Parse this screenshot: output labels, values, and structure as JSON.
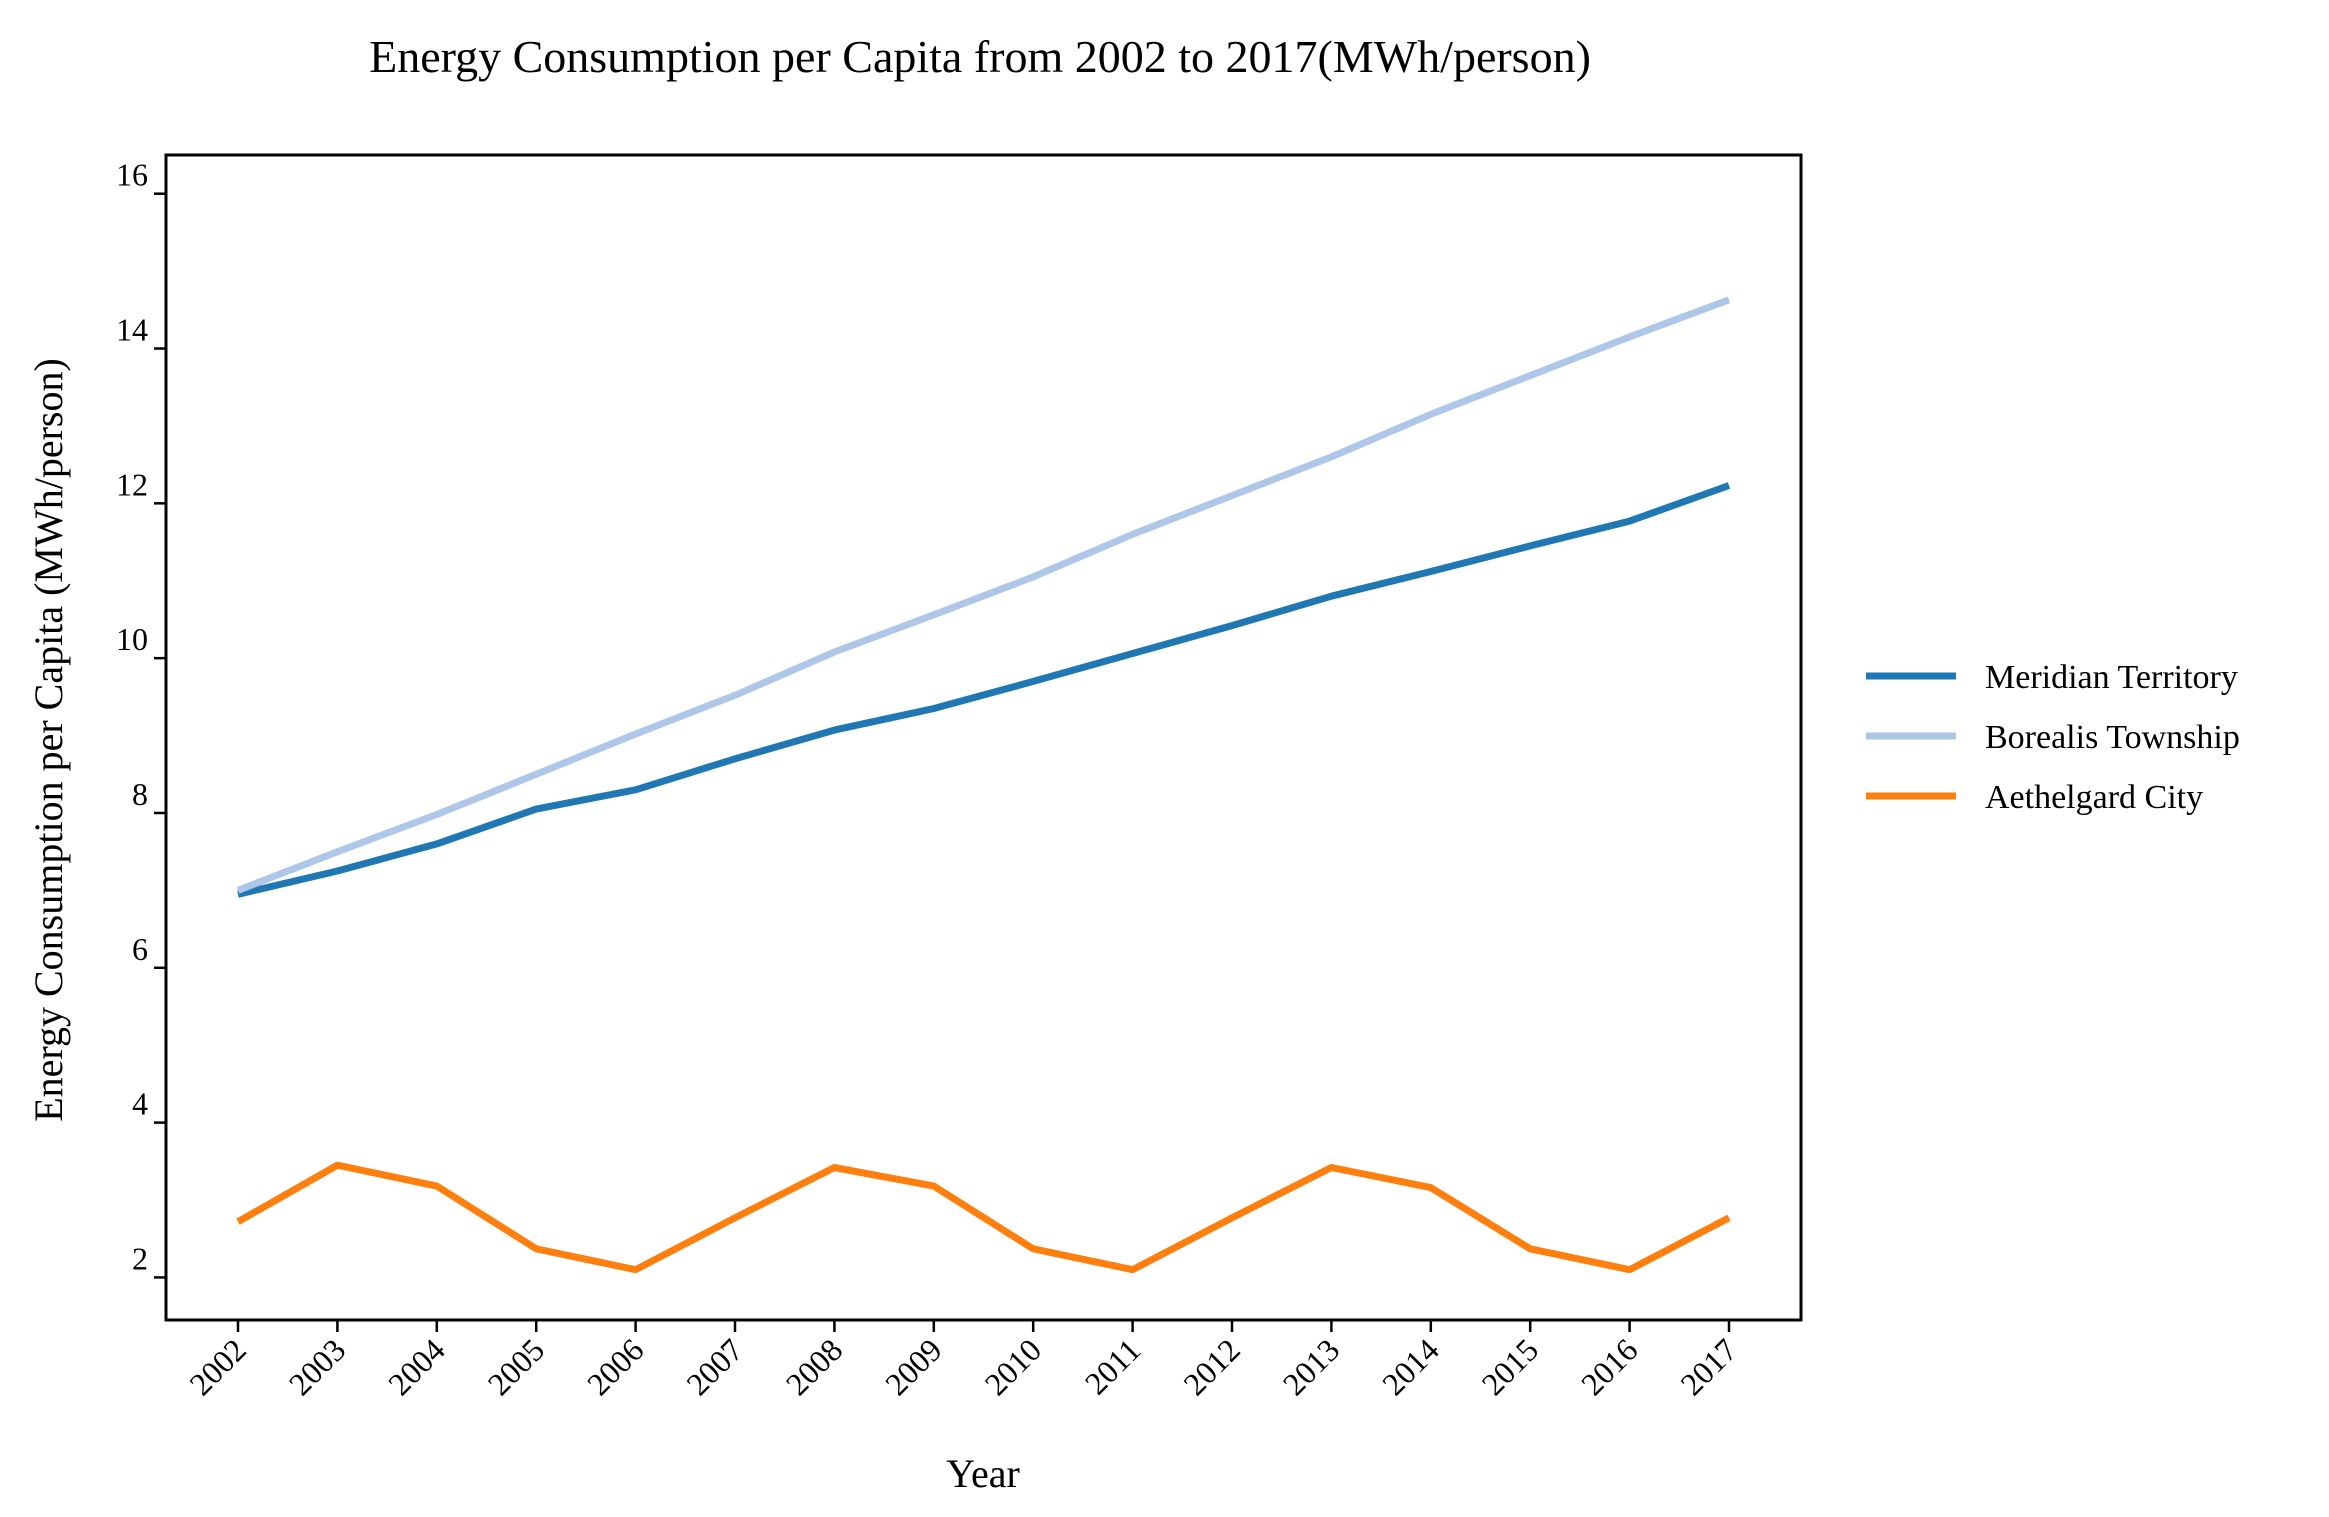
{
  "chart_data": {
    "type": "line",
    "title": "Energy Consumption per Capita from 2002 to 2017(MWh/person)",
    "xlabel": "Year",
    "ylabel": "Energy Consumption per Capita (MWh/person)",
    "x": [
      "2002",
      "2003",
      "2004",
      "2005",
      "2006",
      "2007",
      "2008",
      "2009",
      "2010",
      "2011",
      "2012",
      "2013",
      "2014",
      "2015",
      "2016",
      "2017"
    ],
    "ylim": [
      1.45,
      16.5
    ],
    "yticks": [
      2,
      4,
      6,
      8,
      10,
      12,
      14,
      16
    ],
    "grid": false,
    "legend_position": "right",
    "series": [
      {
        "name": "Meridian Territory",
        "color": "#1f77b4",
        "values": [
          6.95,
          7.25,
          7.6,
          8.05,
          8.3,
          8.7,
          9.07,
          9.35,
          9.7,
          10.06,
          10.42,
          10.8,
          11.12,
          11.45,
          11.77,
          12.23
        ]
      },
      {
        "name": "Borealis Township",
        "color": "#aec7e8",
        "values": [
          7.0,
          7.5,
          7.98,
          8.5,
          9.02,
          9.52,
          10.08,
          10.56,
          11.05,
          11.6,
          12.1,
          12.6,
          13.15,
          13.65,
          14.15,
          14.63
        ]
      },
      {
        "name": "Aethelgard City",
        "color": "#ff7f0e",
        "values": [
          2.72,
          3.45,
          3.18,
          2.37,
          2.1,
          2.77,
          3.42,
          3.18,
          2.37,
          2.1,
          2.77,
          3.42,
          3.16,
          2.37,
          2.1,
          2.77
        ]
      }
    ]
  }
}
